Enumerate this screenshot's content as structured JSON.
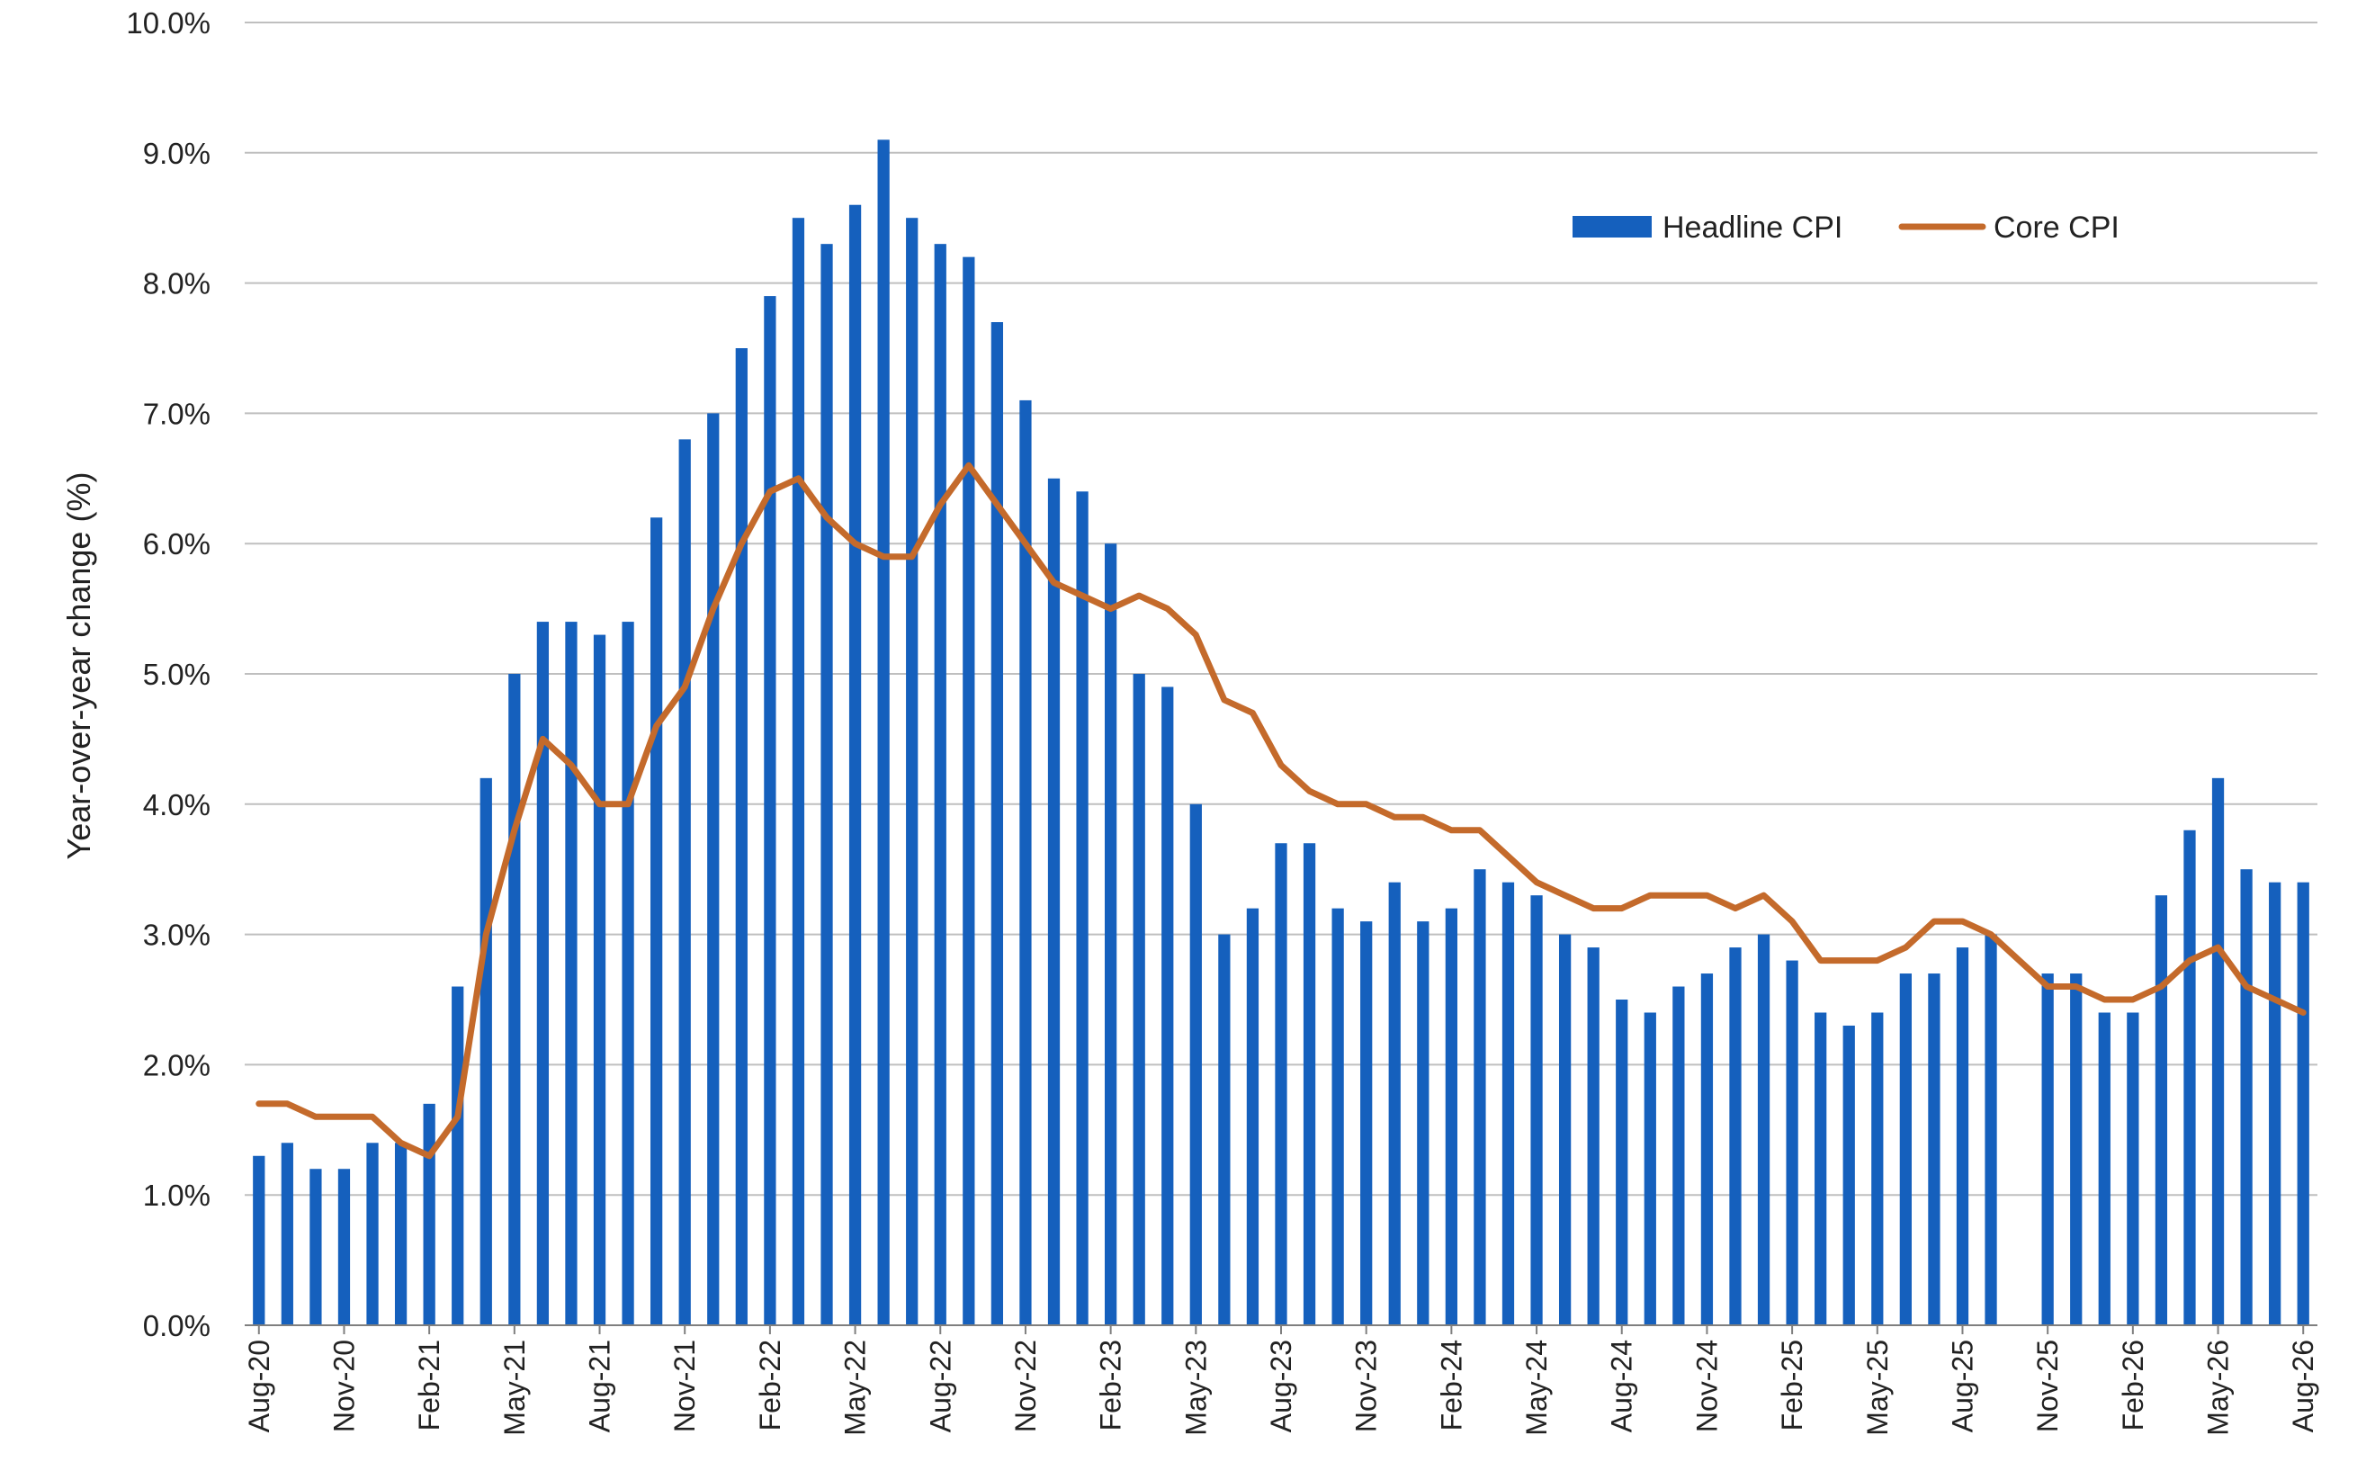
{
  "chart_data": {
    "type": "bar",
    "ylabel": "Year-over-year change (%)",
    "xlabel": "",
    "title": "",
    "ylim": [
      0,
      10
    ],
    "y_tick_step": 1,
    "y_tick_format": "percent_one_decimal",
    "grid": true,
    "legend_placement": "top-right",
    "colors": {
      "headline": "#1560bd",
      "core": "#c46a2b",
      "grid": "#bfbfbf",
      "axis": "#7f7f7f"
    },
    "x_tick_labels": [
      "Aug-20",
      "Nov-20",
      "Feb-21",
      "May-21",
      "Aug-21",
      "Nov-21",
      "Feb-22",
      "May-22",
      "Aug-22",
      "Nov-22",
      "Feb-23",
      "May-23",
      "Aug-23",
      "Nov-23",
      "Feb-24",
      "May-24",
      "Aug-24",
      "Nov-24",
      "Feb-25",
      "May-25",
      "Aug-25",
      "Nov-25",
      "Feb-26",
      "May-26",
      "Aug-26"
    ],
    "x": [
      "Aug-20",
      "Sep-20",
      "Oct-20",
      "Nov-20",
      "Dec-20",
      "Jan-21",
      "Feb-21",
      "Mar-21",
      "Apr-21",
      "May-21",
      "Jun-21",
      "Jul-21",
      "Aug-21",
      "Sep-21",
      "Oct-21",
      "Nov-21",
      "Dec-21",
      "Jan-22",
      "Feb-22",
      "Mar-22",
      "Apr-22",
      "May-22",
      "Jun-22",
      "Jul-22",
      "Aug-22",
      "Sep-22",
      "Oct-22",
      "Nov-22",
      "Dec-22",
      "Jan-23",
      "Feb-23",
      "Mar-23",
      "Apr-23",
      "May-23",
      "Jun-23",
      "Jul-23",
      "Aug-23",
      "Sep-23",
      "Oct-23",
      "Nov-23",
      "Dec-23",
      "Jan-24",
      "Feb-24",
      "Mar-24",
      "Apr-24",
      "May-24",
      "Jun-24",
      "Jul-24",
      "Aug-24",
      "Sep-24",
      "Oct-24",
      "Nov-24",
      "Dec-24",
      "Jan-25",
      "Feb-25",
      "Mar-25",
      "Apr-25",
      "May-25",
      "Jun-25",
      "Jul-25",
      "Aug-25",
      "Sep-25",
      "Oct-25",
      "Nov-25",
      "Dec-25",
      "Jan-26",
      "Feb-26",
      "Mar-26",
      "Apr-26",
      "May-26",
      "Jun-26",
      "Jul-26",
      "Aug-26"
    ],
    "series": [
      {
        "name": "Headline CPI",
        "kind": "bar",
        "values": [
          1.3,
          1.4,
          1.2,
          1.2,
          1.4,
          1.4,
          1.7,
          2.6,
          4.2,
          5.0,
          5.4,
          5.4,
          5.3,
          5.4,
          6.2,
          6.8,
          7.0,
          7.5,
          7.9,
          8.5,
          8.3,
          8.6,
          9.1,
          8.5,
          8.3,
          8.2,
          7.7,
          7.1,
          6.5,
          6.4,
          6.0,
          5.0,
          4.9,
          4.0,
          3.0,
          3.2,
          3.7,
          3.7,
          3.2,
          3.1,
          3.4,
          3.1,
          3.2,
          3.5,
          3.4,
          3.3,
          3.0,
          2.9,
          2.5,
          2.4,
          2.6,
          2.7,
          2.9,
          3.0,
          2.8,
          2.4,
          2.3,
          2.4,
          2.7,
          2.7,
          2.9,
          3.0,
          null,
          2.7,
          2.7,
          2.4,
          2.4,
          3.3,
          3.8,
          4.2,
          3.5,
          3.4,
          3.4
        ]
      },
      {
        "name": "Core CPI",
        "kind": "line",
        "values": [
          1.7,
          1.7,
          1.6,
          1.6,
          1.6,
          1.4,
          1.3,
          1.6,
          3.0,
          3.8,
          4.5,
          4.3,
          4.0,
          4.0,
          4.6,
          4.9,
          5.5,
          6.0,
          6.4,
          6.5,
          6.2,
          6.0,
          5.9,
          5.9,
          6.3,
          6.6,
          6.3,
          6.0,
          5.7,
          5.6,
          5.5,
          5.6,
          5.5,
          5.3,
          4.8,
          4.7,
          4.3,
          4.1,
          4.0,
          4.0,
          3.9,
          3.9,
          3.8,
          3.8,
          3.6,
          3.4,
          3.3,
          3.2,
          3.2,
          3.3,
          3.3,
          3.3,
          3.2,
          3.3,
          3.1,
          2.8,
          2.8,
          2.8,
          2.9,
          3.1,
          3.1,
          3.0,
          2.8,
          2.6,
          2.6,
          2.5,
          2.5,
          2.6,
          2.8,
          2.9,
          2.6,
          2.5,
          2.4
        ]
      }
    ]
  }
}
